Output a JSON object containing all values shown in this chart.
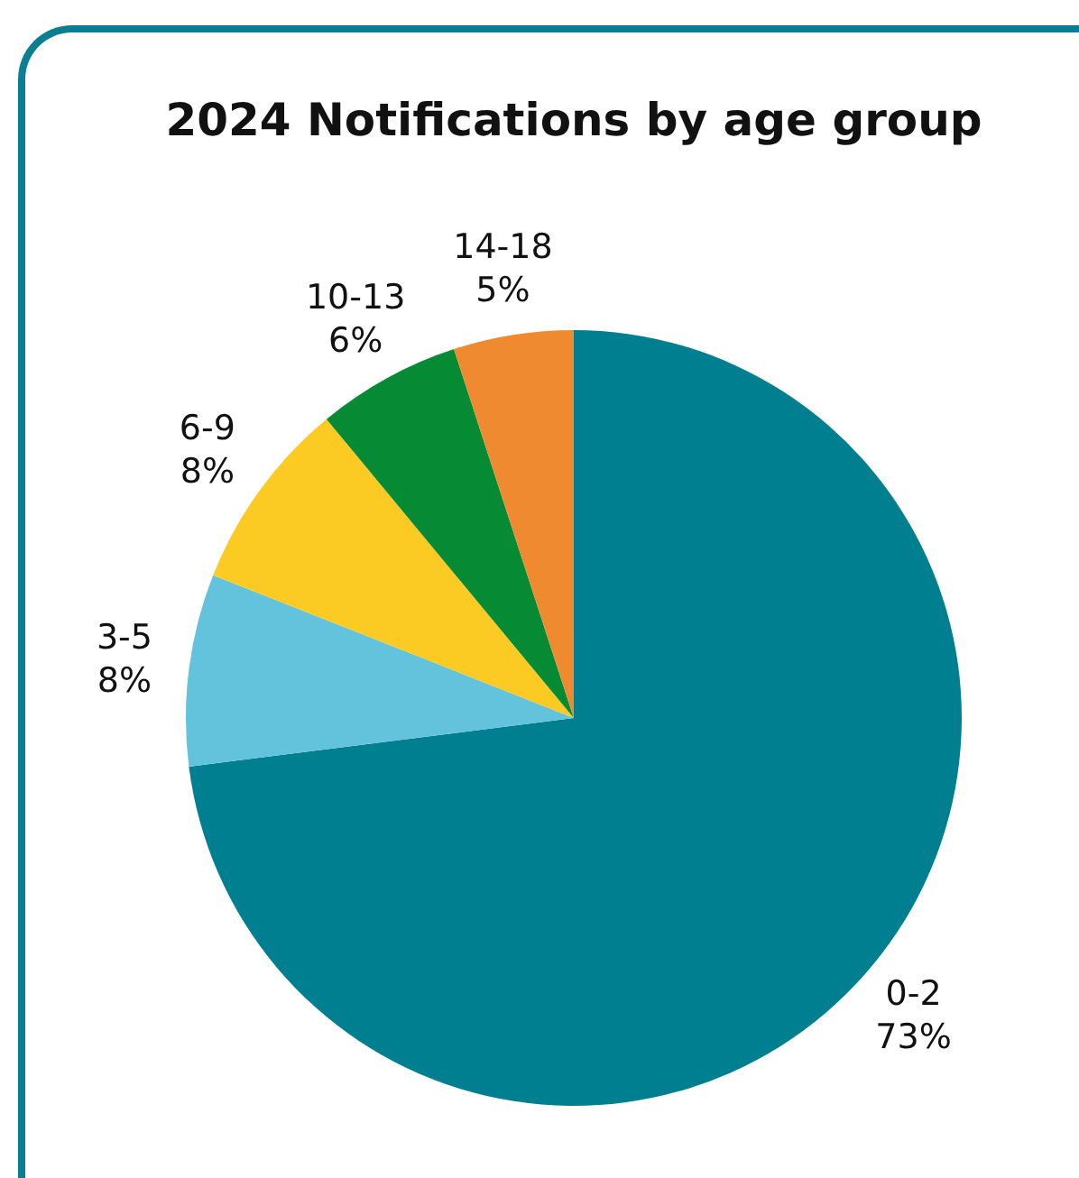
{
  "chart_data": {
    "type": "pie",
    "title": "2024 Notifications by age group",
    "categories": [
      "0-2",
      "3-5",
      "6-9",
      "10-13",
      "14-18"
    ],
    "values": [
      73,
      8,
      8,
      6,
      5
    ],
    "colors": [
      "#007f91",
      "#63c3dd",
      "#fccb23",
      "#078a34",
      "#f08a30"
    ],
    "value_labels": [
      "73%",
      "8%",
      "8%",
      "6%",
      "5%"
    ],
    "legend": false
  }
}
